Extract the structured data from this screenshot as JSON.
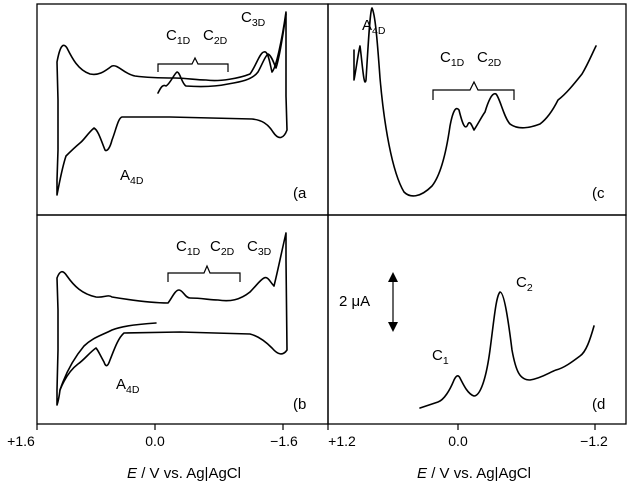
{
  "chart_data": [
    {
      "panel": "a",
      "type": "line",
      "label": "(a",
      "xlim": [
        1.6,
        -1.6
      ],
      "ticks": [],
      "annotations": [
        {
          "base": "A",
          "sub": "4D"
        },
        {
          "base": "C",
          "sub": "1D"
        },
        {
          "base": "C",
          "sub": "2D"
        },
        {
          "base": "C",
          "sub": "3D"
        }
      ]
    },
    {
      "panel": "b",
      "type": "line",
      "label": "(b",
      "xlim": [
        1.6,
        -1.6
      ],
      "ticks": [
        "+1.6",
        "0.0",
        "−1.6"
      ],
      "xlabel_italic": "E",
      "xlabel_rest": " / V vs. Ag|AgCl",
      "annotations": [
        {
          "base": "A",
          "sub": "4D"
        },
        {
          "base": "C",
          "sub": "1D"
        },
        {
          "base": "C",
          "sub": "2D"
        },
        {
          "base": "C",
          "sub": "3D"
        }
      ]
    },
    {
      "panel": "c",
      "type": "line",
      "label": "(c",
      "xlim": [
        1.2,
        -1.4
      ],
      "ticks": [],
      "annotations": [
        {
          "base": "A",
          "sub": "4D"
        },
        {
          "base": "C",
          "sub": "1D"
        },
        {
          "base": "C",
          "sub": "2D"
        }
      ]
    },
    {
      "panel": "d",
      "type": "line",
      "label": "(d",
      "xlim": [
        1.2,
        -1.4
      ],
      "ticks": [
        "+1.2",
        "0.0",
        "−1.2"
      ],
      "xlabel_italic": "E",
      "xlabel_rest": " / V vs. Ag|AgCl",
      "scale_bar": "2 μA",
      "annotations": [
        {
          "base": "C",
          "sub": "1"
        },
        {
          "base": "C",
          "sub": "2"
        }
      ]
    }
  ]
}
